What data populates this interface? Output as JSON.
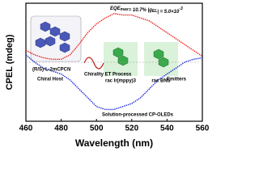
{
  "chart_data": {
    "type": "line",
    "x_label": "Wavelength (nm)",
    "y_label": "CPEL (mdeg)",
    "x": [
      460,
      465,
      470,
      475,
      480,
      485,
      490,
      495,
      500,
      505,
      510,
      515,
      520,
      525,
      530,
      535,
      540,
      545,
      550,
      555,
      560
    ],
    "series": [
      {
        "color": "#e8231f",
        "values": [
          8,
          5,
          3,
          2,
          2,
          5,
          12,
          20,
          26,
          30,
          33,
          32,
          32,
          30,
          28,
          24,
          20,
          16,
          12,
          8,
          4
        ]
      },
      {
        "color": "#1f2ed6",
        "values": [
          5,
          0,
          -4,
          -6,
          -8,
          -12,
          -18,
          -24,
          -30,
          -32,
          -32,
          -30,
          -28,
          -24,
          -18,
          -12,
          -8,
          -4,
          0,
          2,
          3
        ]
      }
    ],
    "xlim": [
      460,
      560
    ],
    "xticks": [
      460,
      480,
      500,
      520,
      540,
      560
    ],
    "ylim": [
      -40,
      40
    ],
    "annotations": {
      "eqe": "EQE",
      "eqe_sub": "max",
      "eqe_val": "= 10.7%  |g",
      "g_sub": "EL",
      "g_val": "| = 5.0×10",
      "g_exp": "-3",
      "host": "Chiral Host",
      "host_name": "(R/S)-L-2mCPCN",
      "process": "Chirality ET Process",
      "emitters": "Emitters",
      "ir": "rac Ir(mppy)3",
      "bns": "rac BNS",
      "bottom": "Solution-processed CP-OLEDs"
    }
  }
}
